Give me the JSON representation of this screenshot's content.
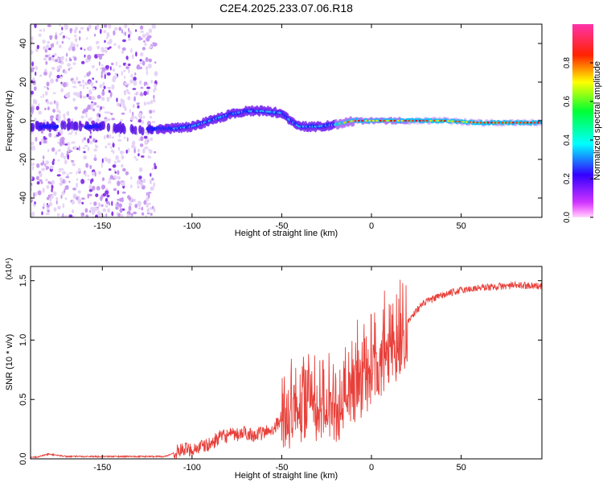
{
  "figure_title": "C2E4.2025.233.07.06.R18",
  "chart_data": [
    {
      "type": "heatmap",
      "title": "",
      "xlabel": "Height of straight line (km)",
      "ylabel": "Frequency (Hz)",
      "xlim": [
        -190,
        95
      ],
      "ylim": [
        -50,
        50
      ],
      "x_ticks": [
        -150,
        -100,
        -50,
        0,
        50
      ],
      "x_tick_labels": [
        "-150",
        "-100",
        "-50",
        "0",
        "50"
      ],
      "y_ticks": [
        -40,
        -20,
        0,
        20,
        40
      ],
      "y_tick_labels": [
        "-40",
        "-20",
        "0",
        "20",
        "40"
      ],
      "colorbar": {
        "label": "Normalized spectral amplitude",
        "range": [
          0,
          1
        ],
        "ticks": [
          0.0,
          0.2,
          0.4,
          0.6,
          0.8
        ],
        "tick_labels": [
          "0.0",
          "0.2",
          "0.4",
          "0.6",
          "0.8"
        ],
        "colormap": "rainbow (magenta-blue-cyan-green-yellow-red)"
      },
      "ridge": {
        "x": [
          -190,
          -180,
          -165,
          -150,
          -130,
          -120,
          -110,
          -100,
          -90,
          -80,
          -70,
          -60,
          -50,
          -45,
          -40,
          -30,
          -20,
          -10,
          0,
          10,
          20,
          40,
          60,
          80,
          95
        ],
        "freq": [
          -3,
          -3,
          -3,
          -3,
          -5,
          -4,
          -4,
          -3,
          0,
          3,
          5,
          5,
          4,
          0,
          -3,
          -3,
          -2,
          0,
          0,
          0,
          0,
          0,
          -1,
          -1,
          -1
        ]
      },
      "noise_region_x": [
        -190,
        -120
      ]
    },
    {
      "type": "line",
      "title": "",
      "xlabel": "Height of straight line (km)",
      "ylabel": "SNR (10 * v/v)",
      "y_scale_label": "(x10⁴)",
      "xlim": [
        -190,
        95
      ],
      "ylim": [
        0,
        1.62
      ],
      "x_ticks": [
        -150,
        -100,
        -50,
        0,
        50
      ],
      "x_tick_labels": [
        "-150",
        "-100",
        "-50",
        "0",
        "50"
      ],
      "y_ticks": [
        0.0,
        0.5,
        1.0,
        1.5
      ],
      "y_tick_labels": [
        "0.0",
        "0.5",
        "1.0",
        "1.5"
      ],
      "series": [
        {
          "color": "#e8403a",
          "x": [
            -190,
            -185,
            -180,
            -175,
            -170,
            -160,
            -150,
            -140,
            -130,
            -120,
            -115,
            -110,
            -105,
            -100,
            -95,
            -90,
            -85,
            -80,
            -75,
            -70,
            -65,
            -60,
            -55,
            -50,
            -47,
            -45,
            -40,
            -35,
            -30,
            -25,
            -20,
            -17,
            -15,
            -10,
            -5,
            0,
            5,
            10,
            15,
            20,
            25,
            30,
            40,
            50,
            60,
            70,
            80,
            90,
            95
          ],
          "values": [
            0.01,
            0.02,
            0.04,
            0.03,
            0.02,
            0.02,
            0.02,
            0.02,
            0.02,
            0.02,
            0.02,
            0.05,
            0.08,
            0.08,
            0.1,
            0.12,
            0.18,
            0.2,
            0.2,
            0.22,
            0.2,
            0.22,
            0.25,
            0.35,
            0.5,
            0.5,
            0.55,
            0.6,
            0.55,
            0.6,
            0.55,
            0.5,
            0.7,
            0.75,
            0.8,
            0.9,
            1.0,
            1.05,
            1.1,
            1.15,
            1.25,
            1.32,
            1.38,
            1.42,
            1.44,
            1.45,
            1.46,
            1.46,
            1.45
          ]
        }
      ]
    }
  ]
}
